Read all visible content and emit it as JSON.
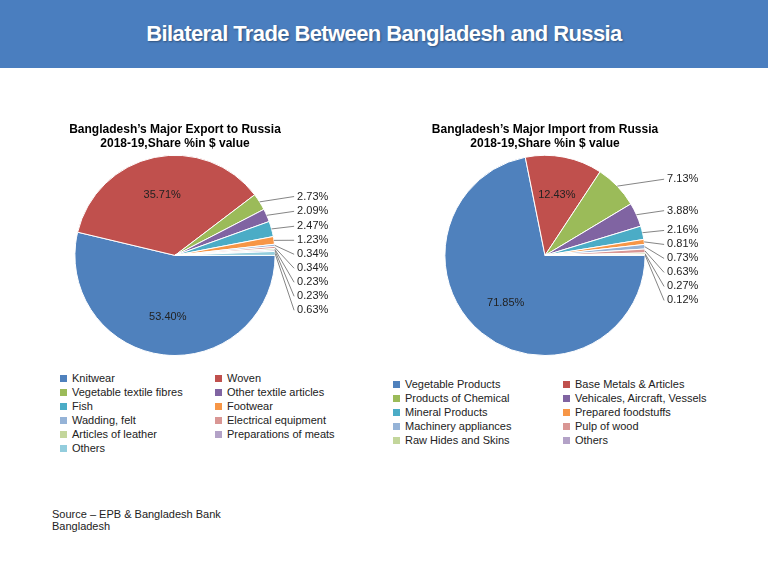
{
  "title": "Bilateral Trade Between Bangladesh and Russia",
  "source": [
    "Source – EPB & Bangladesh Bank",
    "Bangladesh"
  ],
  "chart_data": [
    {
      "type": "pie",
      "title": [
        "Bangladesh’s Major Export to Russia",
        "2018-19,Share %in $ value"
      ],
      "categories": [
        "Knitwear",
        "Woven",
        "Vegetable textile fibres",
        "Other textile articles",
        "Fish",
        "Footwear",
        "Wadding, felt",
        "Electrical equipment",
        "Articles of leather",
        "Preparations of meats",
        "Others"
      ],
      "values": [
        53.4,
        35.71,
        2.73,
        2.09,
        2.47,
        1.23,
        0.34,
        0.34,
        0.23,
        0.23,
        0.63
      ],
      "value_labels": [
        "53.40%",
        "35.71%",
        "2.73%",
        "2.09%",
        "2.47%",
        "1.23%",
        "0.34%",
        "0.34%",
        "0.23%",
        "0.23%",
        "0.63%"
      ],
      "colors": [
        "#4f81bd",
        "#c0504d",
        "#9bbb59",
        "#8064a2",
        "#4bacc6",
        "#f79646",
        "#95b3d7",
        "#d99694",
        "#c3d69b",
        "#b3a2c7",
        "#93cddd"
      ],
      "data_labels": true,
      "legend": "bottom"
    },
    {
      "type": "pie",
      "title": [
        "Bangladesh’s Major Import from Russia",
        "2018-19,Share %in $ value"
      ],
      "categories": [
        "Vegetable Products",
        "Base Metals & Articles",
        "Products of Chemical",
        "Vehicales, Aircraft, Vessels",
        "Mineral Products",
        "Prepared foodstuffs",
        "Machinery appliances",
        "Pulp of wood",
        "Raw Hides and Skins",
        "Others"
      ],
      "values": [
        71.85,
        12.43,
        7.13,
        3.88,
        2.16,
        0.81,
        0.73,
        0.63,
        0.27,
        0.12
      ],
      "value_labels": [
        "71.85%",
        "12.43%",
        "7.13%",
        "3.88%",
        "2.16%",
        "0.81%",
        "0.73%",
        "0.63%",
        "0.27%",
        "0.12%"
      ],
      "colors": [
        "#4f81bd",
        "#c0504d",
        "#9bbb59",
        "#8064a2",
        "#4bacc6",
        "#f79646",
        "#95b3d7",
        "#d99694",
        "#c3d69b",
        "#b3a2c7"
      ],
      "data_labels": true,
      "legend": "bottom"
    }
  ]
}
